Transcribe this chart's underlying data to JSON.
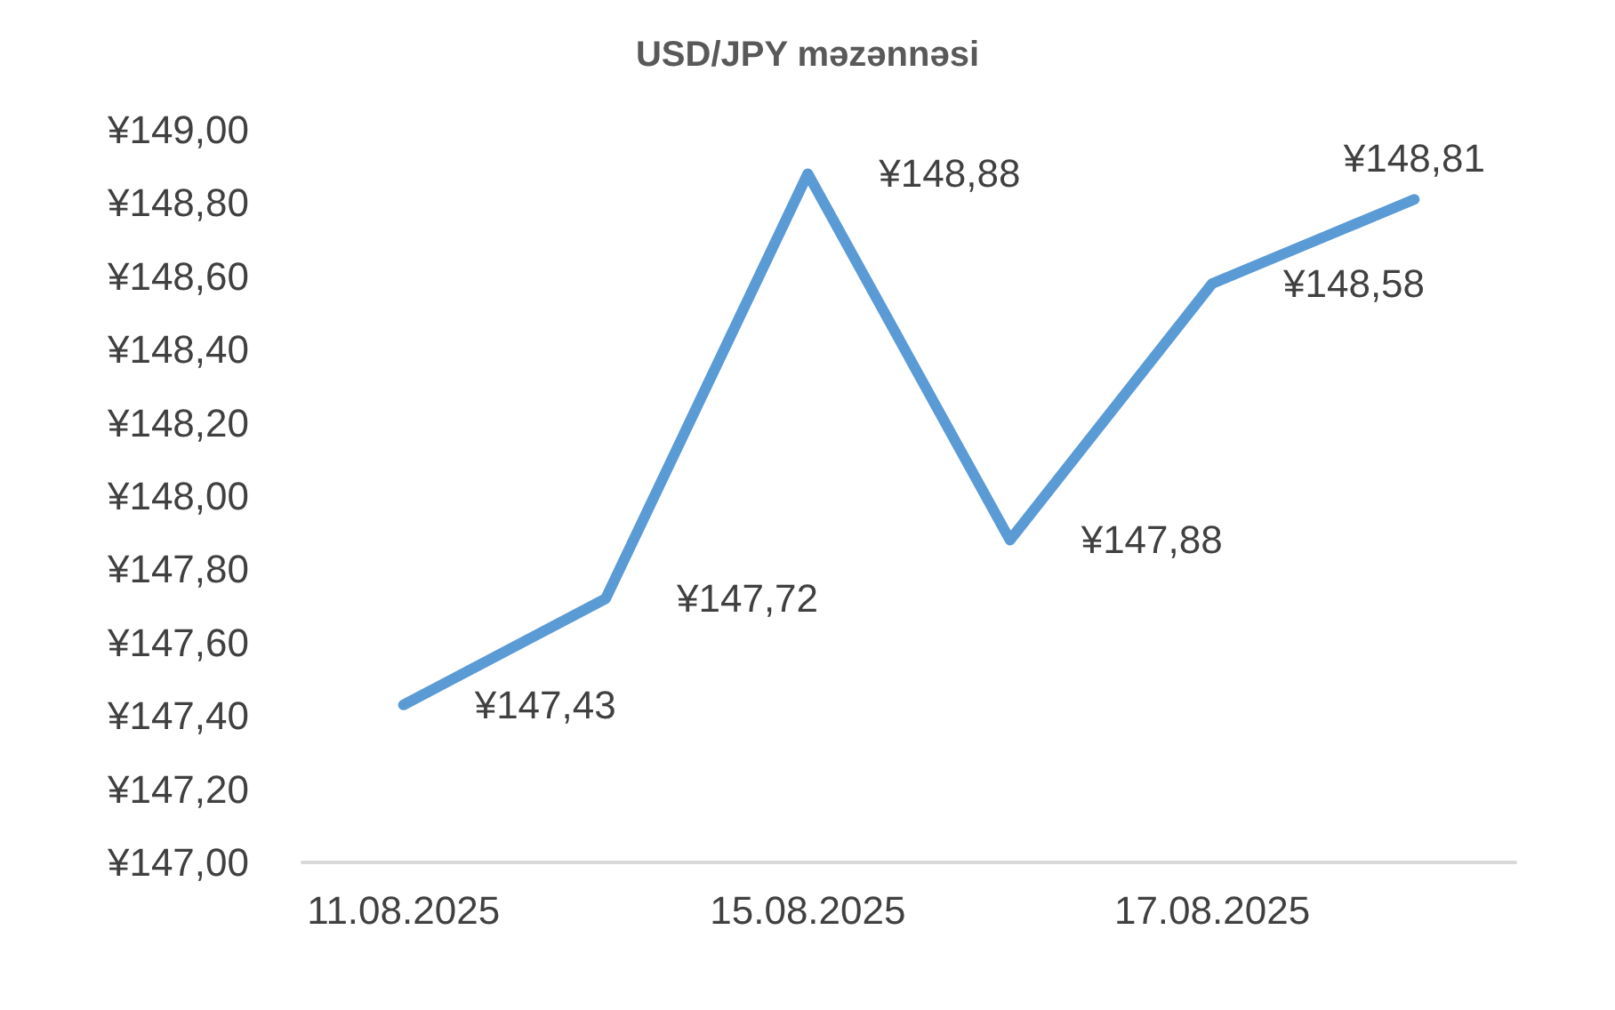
{
  "chart_data": {
    "type": "line",
    "title": "USD/JPY məzənnəsi",
    "categories": [
      "11.08.2025",
      null,
      "15.08.2025",
      null,
      "17.08.2025",
      null
    ],
    "values": [
      147.43,
      147.72,
      148.88,
      147.88,
      148.58,
      148.81
    ],
    "value_labels": [
      "¥147,43",
      "¥147,72",
      "¥148,88",
      "¥147,88",
      "¥148,58",
      "¥148,81"
    ],
    "color": "#5b9bd5",
    "ylim": [
      147,
      149
    ],
    "yticks": [
      {
        "value": 147,
        "label": "¥147,00"
      },
      {
        "value": 147.2,
        "label": "¥147,20"
      },
      {
        "value": 147.4,
        "label": "¥147,40"
      },
      {
        "value": 147.6,
        "label": "¥147,60"
      },
      {
        "value": 147.8,
        "label": "¥147,80"
      },
      {
        "value": 148,
        "label": "¥148,00"
      },
      {
        "value": 148.2,
        "label": "¥148,20"
      },
      {
        "value": 148.4,
        "label": "¥148,40"
      },
      {
        "value": 148.6,
        "label": "¥148,60"
      },
      {
        "value": 148.8,
        "label": "¥148,80"
      },
      {
        "value": 149,
        "label": "¥149,00"
      }
    ]
  }
}
